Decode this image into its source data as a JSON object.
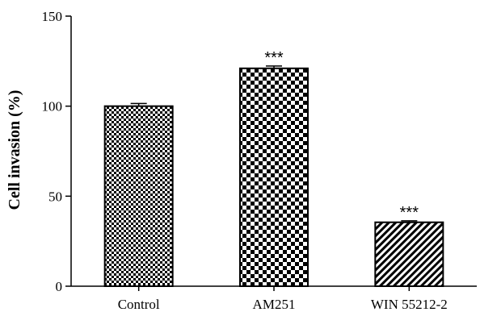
{
  "chart_data": {
    "type": "bar",
    "title": "",
    "xlabel": "",
    "ylabel": "Cell invasion (%)",
    "ylim": [
      0,
      150
    ],
    "yticks": [
      0,
      50,
      100,
      150
    ],
    "grid": false,
    "categories": [
      "Control",
      "AM251",
      "WIN 55212-2"
    ],
    "values": [
      100,
      121,
      35.5
    ],
    "errors": [
      1.5,
      1.3,
      0.8
    ],
    "annotations": [
      "",
      "***",
      "***"
    ],
    "patterns": [
      "fine-checker",
      "coarse-checker",
      "diagonal-hatch"
    ]
  }
}
